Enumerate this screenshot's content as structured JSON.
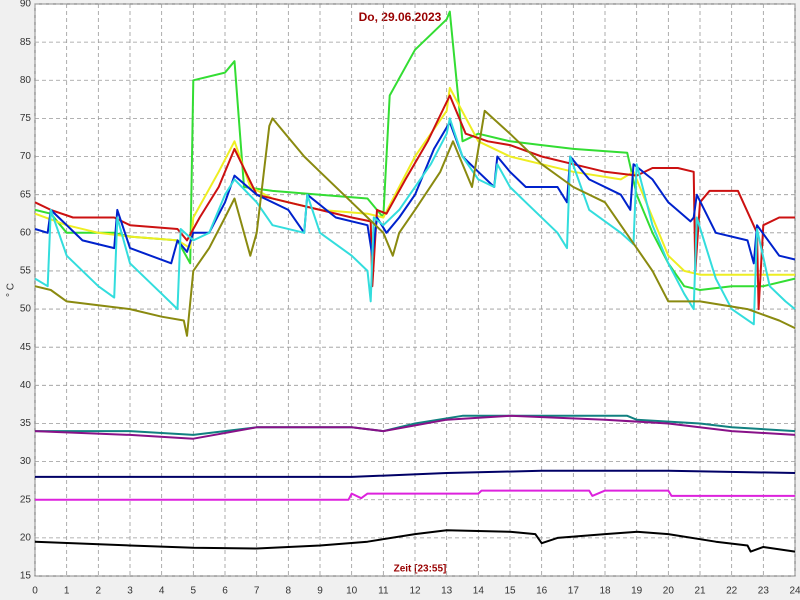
{
  "chart_data": {
    "type": "line",
    "title": "Do, 29.06.2023",
    "xlabel": "Zeit [23:55]",
    "ylabel": "° C",
    "xlim": [
      0,
      24
    ],
    "ylim": [
      15,
      90
    ],
    "xticks": [
      0,
      1,
      2,
      3,
      4,
      5,
      6,
      7,
      8,
      9,
      10,
      11,
      12,
      13,
      14,
      15,
      16,
      17,
      18,
      19,
      20,
      21,
      22,
      23,
      24
    ],
    "yticks": [
      15,
      20,
      25,
      30,
      35,
      40,
      45,
      50,
      55,
      60,
      65,
      70,
      75,
      80,
      85,
      90
    ],
    "grid": true,
    "series": [
      {
        "color": "#33dd33",
        "x": [
          0,
          0.5,
          1,
          2.5,
          3,
          4.5,
          4.9,
          5,
          6,
          6.3,
          6.6,
          7.5,
          9,
          10.5,
          11,
          11.2,
          12,
          13,
          13.1,
          13.5,
          14,
          15,
          16,
          17,
          18.7,
          19,
          19.5,
          20,
          20.5,
          21,
          22,
          23,
          24
        ],
        "values": [
          63,
          62.5,
          60,
          60,
          59.5,
          59,
          56,
          80,
          81,
          82.5,
          66,
          65.5,
          65,
          64.5,
          62,
          78,
          84,
          88,
          89,
          72,
          73,
          72,
          71.5,
          71,
          70.5,
          65,
          60,
          56,
          53,
          52.5,
          53,
          53,
          54
        ]
      },
      {
        "color": "#eeee22",
        "x": [
          0,
          1,
          2,
          3,
          4.5,
          4.9,
          5,
          5.8,
          6.3,
          6.8,
          7.5,
          9,
          10.5,
          11,
          12,
          13,
          13.1,
          14,
          15,
          16,
          17,
          18.5,
          18.9,
          19.5,
          20,
          20.5,
          21,
          22,
          24
        ],
        "values": [
          62.5,
          61,
          60,
          59.5,
          59,
          58,
          62,
          68,
          72,
          66,
          64.5,
          63,
          62.5,
          62,
          70,
          76,
          79,
          72,
          70,
          69,
          68,
          67,
          68,
          62,
          57,
          55,
          54.5,
          54.5,
          54.5
        ]
      },
      {
        "color": "#cc1111",
        "x": [
          0,
          0.5,
          1.2,
          2.5,
          3,
          4.5,
          4.8,
          5.2,
          5.8,
          6.3,
          7,
          8,
          9,
          10,
          10.6,
          10.65,
          10.8,
          11.1,
          11.7,
          12.4,
          13.1,
          13.6,
          14.3,
          15,
          16,
          17,
          18,
          19,
          19.5,
          20.3,
          20.8,
          20.85,
          21,
          21.3,
          22.2,
          22.8,
          22.85,
          23,
          23.5,
          24
        ],
        "values": [
          64,
          63,
          62,
          62,
          61,
          60.5,
          59,
          62,
          66,
          71,
          65,
          64,
          63,
          62,
          61.5,
          53,
          63,
          62.5,
          67,
          72,
          78,
          73,
          72,
          71.5,
          70,
          69,
          68,
          67.5,
          68.5,
          68.5,
          68,
          55,
          64,
          65.5,
          65.5,
          60,
          50,
          61,
          62,
          62
        ]
      },
      {
        "color": "#0022cc",
        "x": [
          0,
          0.4,
          0.5,
          1.5,
          2.5,
          2.6,
          3,
          4.3,
          4.5,
          4.8,
          5,
          5.5,
          6,
          6.3,
          7,
          8,
          8.5,
          8.6,
          9.5,
          10.5,
          10.65,
          10.8,
          11.1,
          11.5,
          12,
          12.6,
          13.1,
          13.5,
          14,
          14.5,
          14.6,
          15,
          15.5,
          16.5,
          16.8,
          16.9,
          17.5,
          18.5,
          18.8,
          18.9,
          19.5,
          20,
          20.7,
          20.8,
          20.9,
          21.5,
          22.5,
          22.7,
          22.8,
          23.5,
          24
        ],
        "values": [
          60.5,
          60,
          63,
          59,
          58,
          63,
          58,
          56,
          59,
          57.5,
          60,
          60,
          64,
          67.5,
          65,
          63,
          60,
          65,
          62,
          61,
          57,
          62,
          60,
          62,
          65,
          71,
          74.5,
          70,
          68,
          66,
          70,
          68,
          66,
          66,
          64,
          70,
          67,
          65,
          63,
          69,
          67,
          64,
          61.5,
          62,
          65,
          60,
          59,
          56,
          61,
          57,
          56.5
        ]
      },
      {
        "color": "#33dddd",
        "x": [
          0,
          0.4,
          0.5,
          1,
          2,
          2.5,
          2.6,
          3,
          4,
          4.5,
          4.6,
          5,
          5.5,
          6,
          6.3,
          7,
          7.5,
          8.5,
          8.6,
          9,
          10,
          10.5,
          10.6,
          10.7,
          11,
          11.5,
          12.5,
          13,
          13.1,
          13.5,
          14,
          14.5,
          14.6,
          15,
          15.5,
          16.5,
          16.8,
          16.9,
          17.5,
          18.5,
          18.9,
          19,
          19.5,
          20,
          20.5,
          20.8,
          20.9,
          21.5,
          22,
          22.7,
          22.8,
          23.2,
          23.7,
          24
        ],
        "values": [
          54,
          53,
          63,
          57,
          53,
          51.5,
          62,
          56,
          52,
          50,
          60.5,
          59,
          60,
          65,
          67,
          64,
          61,
          60,
          65,
          60,
          57,
          55,
          51,
          62,
          61,
          63,
          69,
          73,
          75,
          70,
          67,
          66,
          69,
          66,
          64,
          60,
          58,
          70,
          63,
          60,
          58.5,
          69,
          61,
          56,
          52,
          50,
          62,
          54,
          50,
          48,
          60.5,
          53,
          51,
          50
        ]
      },
      {
        "color": "#8a8a10",
        "x": [
          0,
          0.5,
          1,
          2,
          3,
          4,
          4.7,
          4.8,
          5,
          5.5,
          6,
          6.3,
          6.8,
          7,
          7.4,
          7.5,
          8.5,
          9,
          10,
          10.5,
          11,
          11.3,
          11.5,
          12,
          12.8,
          13.2,
          13.8,
          14.2,
          15,
          16,
          17,
          18,
          18.5,
          19,
          19.5,
          20,
          21,
          22.5,
          23.5,
          24
        ],
        "values": [
          53,
          52.5,
          51,
          50.5,
          50,
          49,
          48.5,
          46.5,
          55,
          58,
          62,
          64.5,
          57,
          60,
          74,
          75,
          70,
          68,
          64,
          62,
          60,
          57,
          60,
          63,
          68,
          72,
          66,
          76,
          73,
          69,
          66,
          64,
          61,
          58,
          55,
          51,
          51,
          50,
          48.5,
          47.5
        ]
      },
      {
        "color": "#118080",
        "x": [
          0,
          3,
          5,
          7,
          10,
          11,
          12,
          13.5,
          18.7,
          19,
          21,
          22,
          24
        ],
        "values": [
          34,
          34,
          33.5,
          34.5,
          34.5,
          34,
          35,
          36,
          36,
          35.5,
          35,
          34.5,
          34
        ]
      },
      {
        "color": "#881188",
        "x": [
          0,
          3,
          5,
          7,
          10,
          11,
          13,
          15,
          18,
          20,
          22,
          24
        ],
        "values": [
          34,
          33.5,
          33,
          34.5,
          34.5,
          34,
          35.5,
          36,
          35.5,
          35,
          34,
          33.5
        ]
      },
      {
        "color": "#000066",
        "x": [
          0,
          5,
          10,
          13,
          16,
          20,
          24
        ],
        "values": [
          28,
          28,
          28,
          28.5,
          28.8,
          28.8,
          28.5
        ]
      },
      {
        "color": "#dd22dd",
        "x": [
          0,
          9.9,
          10,
          10.3,
          10.5,
          12,
          14,
          14.1,
          17.5,
          17.6,
          18,
          20,
          20.1,
          24
        ],
        "values": [
          25,
          25,
          25.8,
          25.2,
          25.8,
          25.8,
          25.8,
          26.2,
          26.2,
          25.5,
          26.2,
          26.2,
          25.5,
          25.5
        ]
      },
      {
        "color": "#000000",
        "x": [
          0,
          3,
          5,
          7,
          9,
          10.5,
          12,
          13,
          15,
          15.8,
          16,
          16.5,
          18,
          19,
          20,
          21.5,
          22.5,
          22.6,
          23,
          24
        ],
        "values": [
          19.5,
          19,
          18.7,
          18.6,
          19,
          19.5,
          20.5,
          21,
          20.8,
          20.5,
          19.3,
          20,
          20.5,
          20.8,
          20.5,
          19.5,
          19,
          18.2,
          18.8,
          18.2
        ]
      }
    ]
  }
}
